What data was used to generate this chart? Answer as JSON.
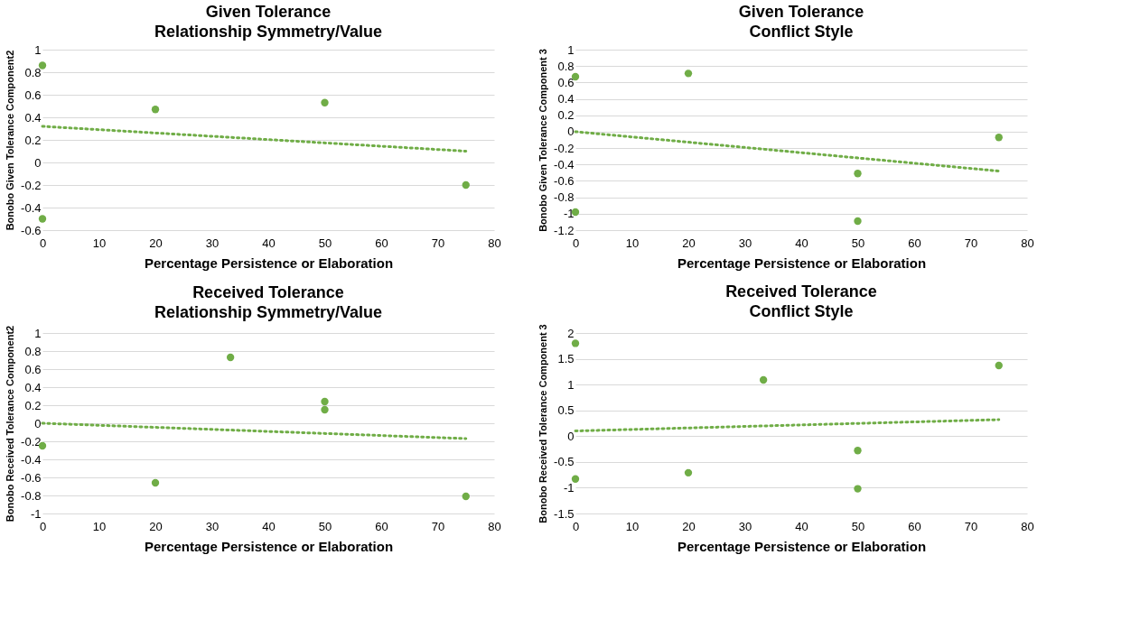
{
  "chart_data": [
    {
      "type": "scatter",
      "title": "Given Tolerance",
      "subtitle": "Relationship Symmetry/Value",
      "xlabel": "Percentage Persistence or Elaboration",
      "ylabel": "Bonobo Given Tolerance Component2",
      "xlim": [
        0,
        80
      ],
      "xticks": [
        0,
        10,
        20,
        30,
        40,
        50,
        60,
        70,
        80
      ],
      "ylim": [
        -0.6,
        1
      ],
      "yticks": [
        -0.6,
        -0.4,
        -0.2,
        0,
        0.2,
        0.4,
        0.6,
        0.8,
        1
      ],
      "grid": "y",
      "marker": "circle",
      "series": [
        {
          "color": "#70ad47",
          "x": [
            0,
            0,
            20,
            50,
            75
          ],
          "values": [
            0.86,
            -0.5,
            0.47,
            0.53,
            -0.2
          ]
        },
        {
          "type": "line",
          "color": "#70ad47",
          "line_style": "dotted",
          "marker": "none",
          "x": [
            0,
            75
          ],
          "values": [
            0.32,
            0.1
          ]
        }
      ]
    },
    {
      "type": "scatter",
      "title": "Given Tolerance",
      "subtitle": "Conflict Style",
      "xlabel": "Percentage Persistence or Elaboration",
      "ylabel": "Bonobo Given Tolerance Component 3",
      "xlim": [
        0,
        80
      ],
      "xticks": [
        0,
        10,
        20,
        30,
        40,
        50,
        60,
        70,
        80
      ],
      "ylim": [
        -1.2,
        1
      ],
      "yticks": [
        -1.2,
        -1,
        -0.8,
        -0.6,
        -0.4,
        -0.2,
        0,
        0.2,
        0.4,
        0.6,
        0.8,
        1
      ],
      "grid": "y",
      "marker": "circle",
      "series": [
        {
          "color": "#70ad47",
          "x": [
            0,
            0,
            20,
            50,
            50,
            75
          ],
          "values": [
            0.67,
            -0.98,
            0.71,
            -0.51,
            -1.09,
            -0.07
          ]
        },
        {
          "type": "line",
          "color": "#70ad47",
          "line_style": "dotted",
          "marker": "none",
          "x": [
            0,
            75
          ],
          "values": [
            0,
            -0.48
          ]
        }
      ]
    },
    {
      "type": "scatter",
      "title": "Received Tolerance",
      "subtitle": "Relationship Symmetry/Value",
      "xlabel": "Percentage Persistence or Elaboration",
      "ylabel": "Bonobo Received Tolerance Component2",
      "xlim": [
        0,
        80
      ],
      "xticks": [
        0,
        10,
        20,
        30,
        40,
        50,
        60,
        70,
        80
      ],
      "ylim": [
        -1,
        1
      ],
      "yticks": [
        -1,
        -0.8,
        -0.6,
        -0.4,
        -0.2,
        0,
        0.2,
        0.4,
        0.6,
        0.8,
        1
      ],
      "grid": "y",
      "marker": "circle",
      "series": [
        {
          "color": "#70ad47",
          "x": [
            0,
            20,
            33.3,
            50,
            50,
            75
          ],
          "values": [
            -0.25,
            -0.66,
            0.73,
            0.24,
            0.15,
            -0.81
          ]
        },
        {
          "type": "line",
          "color": "#70ad47",
          "line_style": "dotted",
          "marker": "none",
          "x": [
            0,
            75
          ],
          "values": [
            0,
            -0.17
          ]
        }
      ]
    },
    {
      "type": "scatter",
      "title": "Received Tolerance",
      "subtitle": "Conflict Style",
      "xlabel": "Percentage Persistence or Elaboration",
      "ylabel": "Bonobo Received Tolerance Component 3",
      "xlim": [
        0,
        80
      ],
      "xticks": [
        0,
        10,
        20,
        30,
        40,
        50,
        60,
        70,
        80
      ],
      "ylim": [
        -1.5,
        2
      ],
      "yticks": [
        -1.5,
        -1,
        -0.5,
        0,
        0.5,
        1,
        1.5,
        2
      ],
      "grid": "y",
      "marker": "circle",
      "series": [
        {
          "color": "#70ad47",
          "x": [
            0,
            0,
            20,
            33.3,
            50,
            50,
            75
          ],
          "values": [
            1.8,
            -0.83,
            -0.71,
            1.09,
            -0.28,
            -1.02,
            1.37
          ]
        },
        {
          "type": "line",
          "color": "#70ad47",
          "line_style": "dotted",
          "marker": "none",
          "x": [
            0,
            75
          ],
          "values": [
            0.1,
            0.32
          ]
        }
      ]
    }
  ]
}
